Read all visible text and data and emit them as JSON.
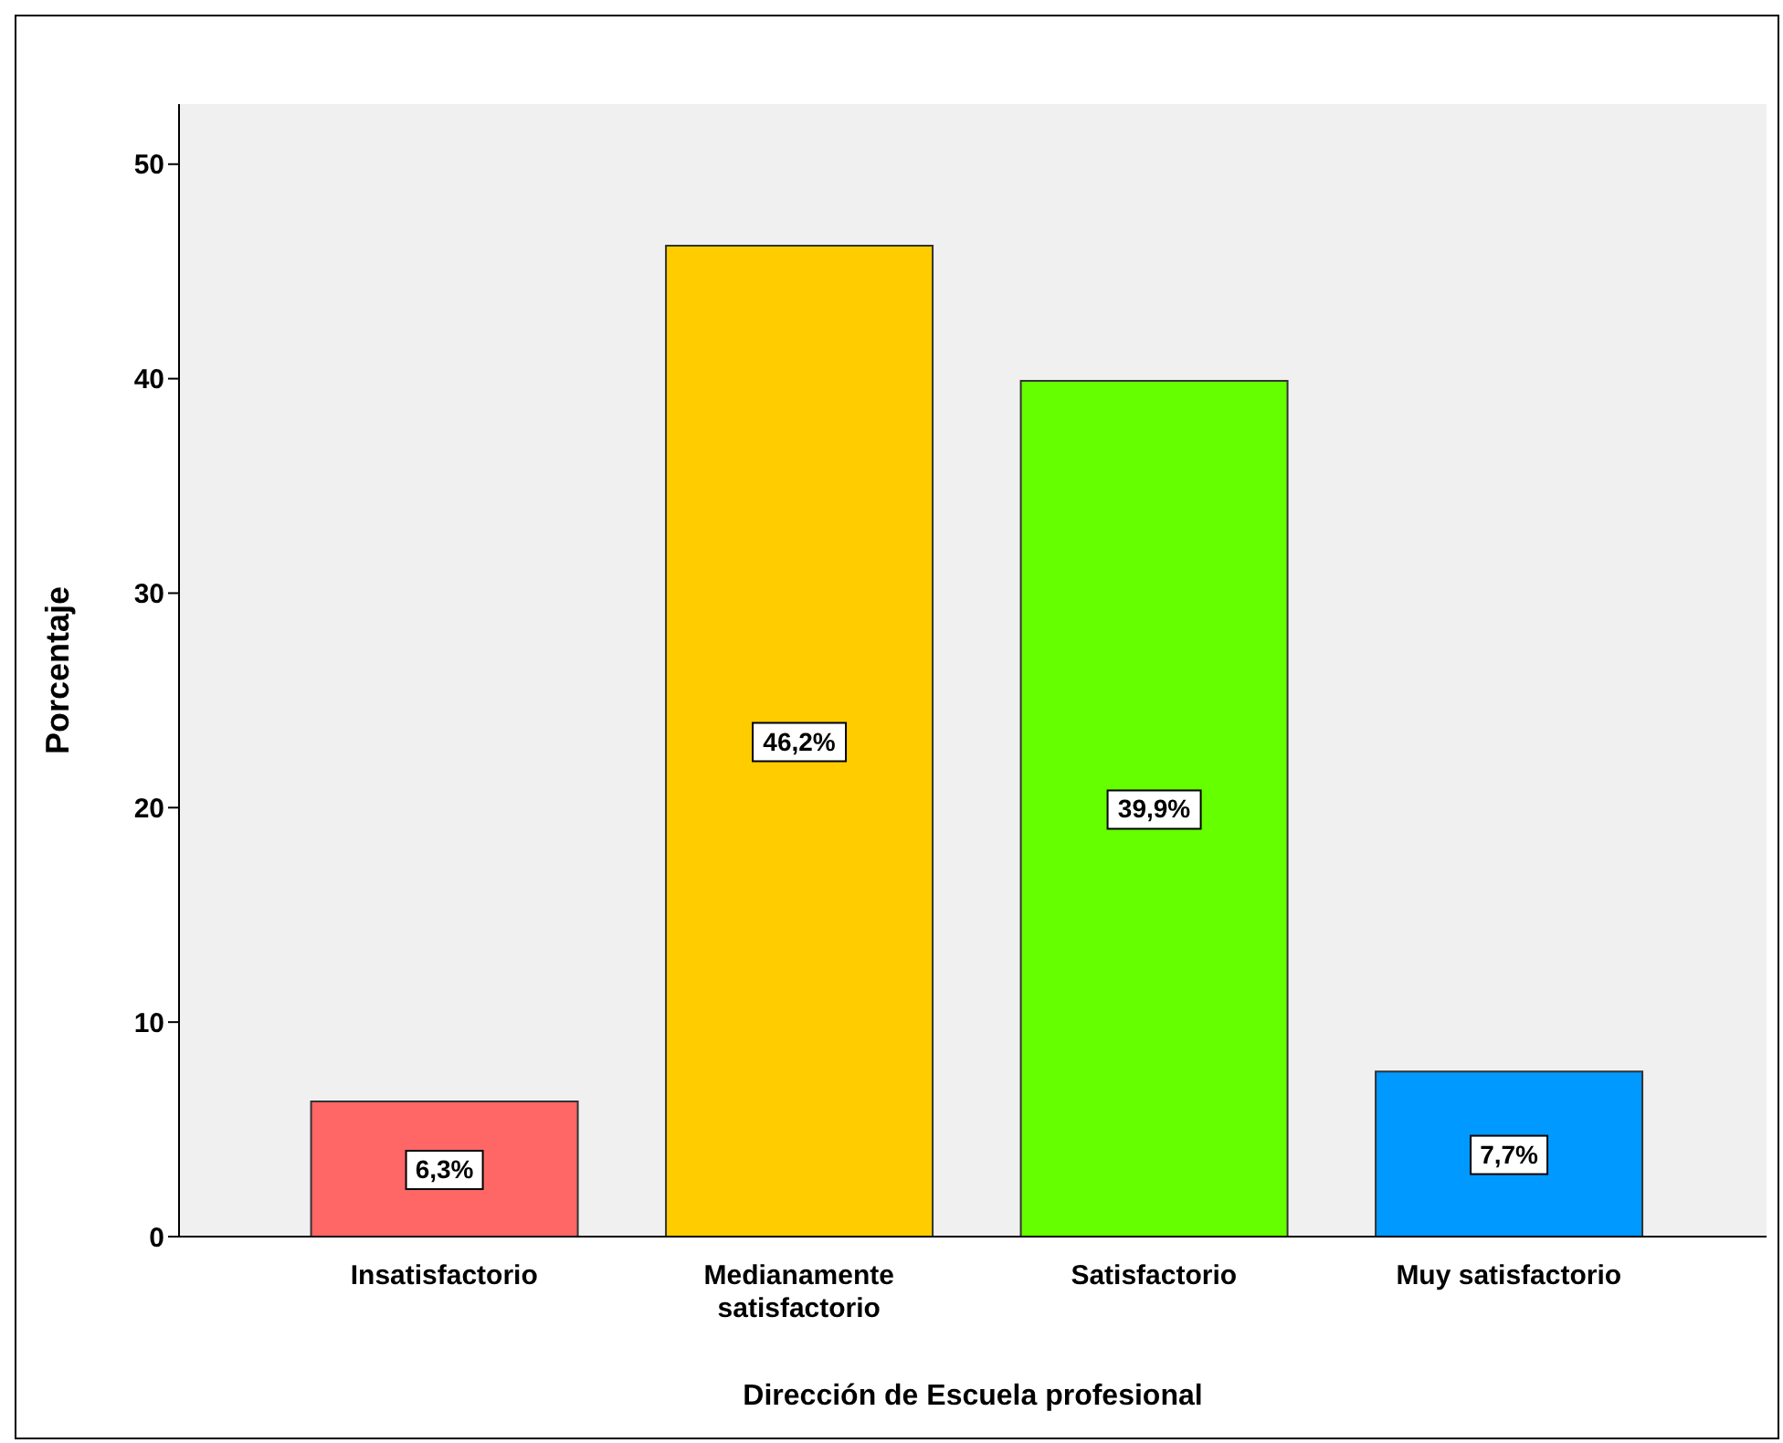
{
  "chart_data": {
    "type": "bar",
    "xlabel": "Dirección de Escuela profesional",
    "ylabel": "Porcentaje",
    "categories": [
      "Insatisfactorio",
      "Medianamente satisfactorio",
      "Satisfactorio",
      "Muy satisfactorio"
    ],
    "values": [
      6.3,
      46.2,
      39.9,
      7.7
    ],
    "colors": [
      "#ff6666",
      "#ffcc00",
      "#66ff00",
      "#0099ff"
    ],
    "value_labels": [
      "6,3%",
      "46,2%",
      "39,9%",
      "7,7%"
    ],
    "ylim": [
      0,
      52.8
    ],
    "yticks": [
      0,
      10,
      20,
      30,
      40,
      50
    ],
    "legend": false
  }
}
